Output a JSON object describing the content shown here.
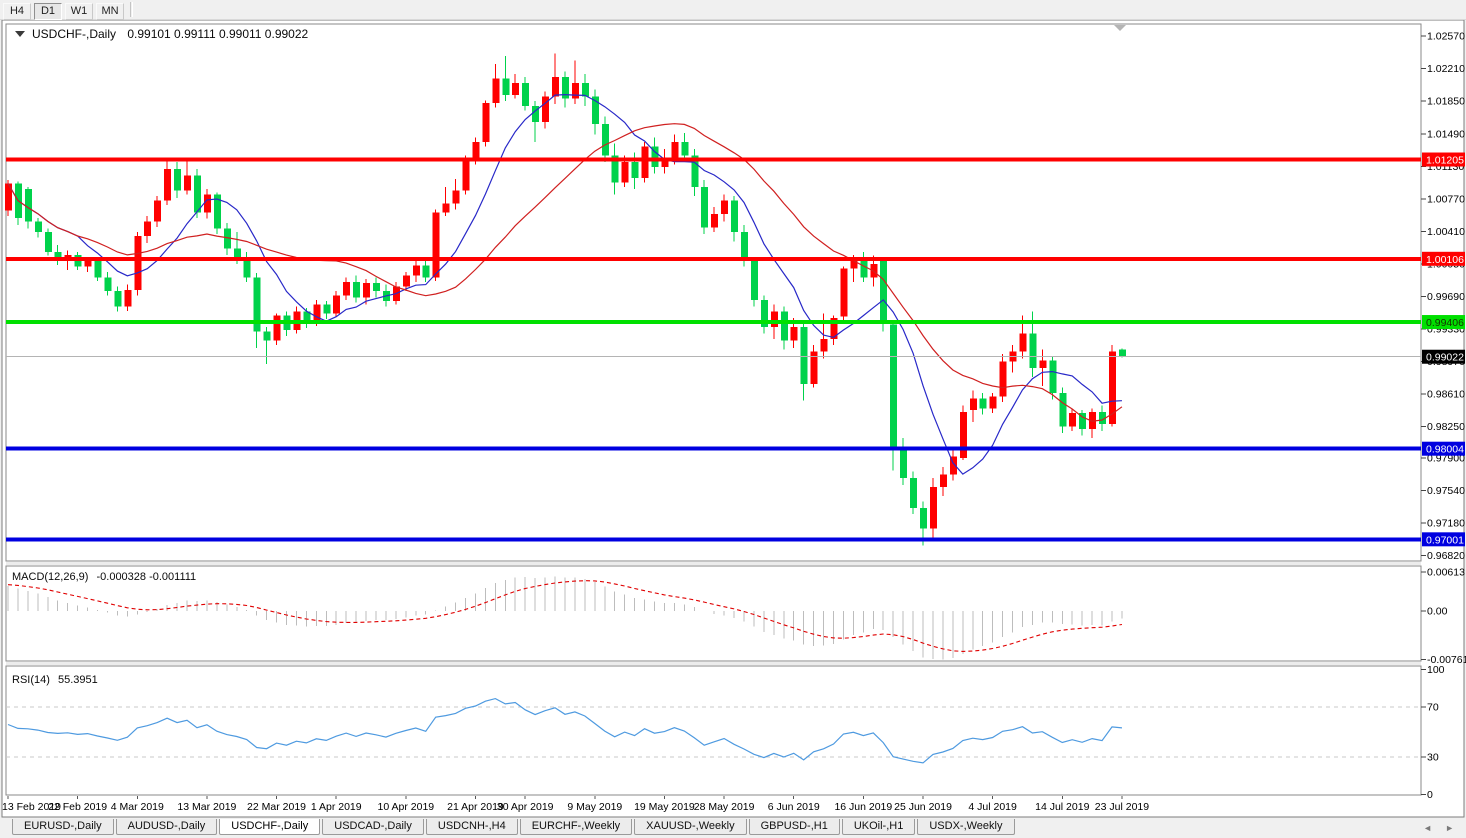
{
  "toolbar": {
    "buttons": [
      {
        "label": "H4",
        "active": false
      },
      {
        "label": "D1",
        "active": true
      },
      {
        "label": "W1",
        "active": false
      },
      {
        "label": "MN",
        "active": false
      }
    ]
  },
  "title": {
    "symbol": "USDCHF-,Daily",
    "ohlc": "0.99101 0.99111 0.99011 0.99022"
  },
  "chart_data": {
    "type": "candlestick",
    "symbol": "USDCHF",
    "timeframe": "Daily",
    "up_color": "#FF0000",
    "down_color": "#00D24B",
    "ylim": [
      0.96761,
      1.02705
    ],
    "candles": [
      [
        1.0064,
        1.0098,
        1.0058,
        1.0094
      ],
      [
        1.0094,
        1.0096,
        1.0048,
        1.0056
      ],
      [
        1.0088,
        1.009,
        1.0044,
        1.0052
      ],
      [
        1.0052,
        1.0056,
        1.0034,
        1.004
      ],
      [
        1.004,
        1.0044,
        1.0014,
        1.0018
      ],
      [
        1.0018,
        1.0026,
        1.0004,
        1.001
      ],
      [
        1.001,
        1.002,
        0.9998,
        1.0015
      ],
      [
        1.0015,
        1.0018,
        0.9998,
        1.0002
      ],
      [
        1.0002,
        1.0012,
        0.9996,
        1.0008
      ],
      [
        1.0008,
        1.001,
        0.9986,
        0.999
      ],
      [
        0.999,
        0.9996,
        0.997,
        0.9975
      ],
      [
        0.9975,
        0.998,
        0.9952,
        0.9958
      ],
      [
        0.9958,
        0.9982,
        0.9953,
        0.9976
      ],
      [
        0.9976,
        1.004,
        0.997,
        1.0036
      ],
      [
        1.0036,
        1.0058,
        1.0028,
        1.0052
      ],
      [
        1.0052,
        1.008,
        1.0046,
        1.0075
      ],
      [
        1.0075,
        1.0121,
        1.007,
        1.011
      ],
      [
        1.011,
        1.0118,
        1.0078,
        1.0086
      ],
      [
        1.0086,
        1.0121,
        1.0082,
        1.0103
      ],
      [
        1.0103,
        1.011,
        1.0056,
        1.0062
      ],
      [
        1.0062,
        1.0088,
        1.0055,
        1.0082
      ],
      [
        1.0082,
        1.0084,
        1.0038,
        1.0044
      ],
      [
        1.0044,
        1.005,
        1.0015,
        1.0022
      ],
      [
        1.0022,
        1.004,
        1.0005,
        1.001
      ],
      [
        1.001,
        1.0018,
        0.9985,
        0.999
      ],
      [
        0.999,
        0.9995,
        0.9912,
        0.993
      ],
      [
        0.993,
        0.9935,
        0.9894,
        0.992
      ],
      [
        0.992,
        0.995,
        0.9915,
        0.9948
      ],
      [
        0.9948,
        0.9952,
        0.9925,
        0.9932
      ],
      [
        0.9932,
        0.9958,
        0.9928,
        0.9952
      ],
      [
        0.9952,
        0.9956,
        0.9934,
        0.994
      ],
      [
        0.994,
        0.9965,
        0.9936,
        0.996
      ],
      [
        0.996,
        0.9964,
        0.9944,
        0.995
      ],
      [
        0.995,
        0.9975,
        0.9946,
        0.997
      ],
      [
        0.997,
        0.999,
        0.9965,
        0.9985
      ],
      [
        0.9985,
        0.9992,
        0.9962,
        0.9968
      ],
      [
        0.9968,
        0.9988,
        0.996,
        0.9984
      ],
      [
        0.9984,
        0.999,
        0.9968,
        0.9975
      ],
      [
        0.9975,
        0.9982,
        0.9958,
        0.9964
      ],
      [
        0.9964,
        0.9985,
        0.996,
        0.998
      ],
      [
        0.998,
        0.9996,
        0.9975,
        0.9992
      ],
      [
        0.9992,
        1.0008,
        0.9985,
        1.0003
      ],
      [
        1.0003,
        1.0008,
        0.9985,
        0.999
      ],
      [
        0.999,
        1.0065,
        0.9986,
        1.0062
      ],
      [
        1.0062,
        1.009,
        1.0058,
        1.0072
      ],
      [
        1.0072,
        1.0099,
        1.0065,
        1.0086
      ],
      [
        1.0086,
        1.0125,
        1.0082,
        1.0122
      ],
      [
        1.0122,
        1.0145,
        1.0115,
        1.014
      ],
      [
        1.014,
        1.0186,
        1.0135,
        1.0183
      ],
      [
        1.0183,
        1.0226,
        1.0178,
        1.021
      ],
      [
        1.021,
        1.0235,
        1.0185,
        1.0192
      ],
      [
        1.0192,
        1.0215,
        1.0188,
        1.0205
      ],
      [
        1.0205,
        1.0212,
        1.0175,
        1.018
      ],
      [
        1.018,
        1.0185,
        1.014,
        1.0162
      ],
      [
        1.0162,
        1.0196,
        1.0155,
        1.019
      ],
      [
        1.019,
        1.0238,
        1.0182,
        1.0212
      ],
      [
        1.0212,
        1.0218,
        1.0178,
        1.0188
      ],
      [
        1.0188,
        1.023,
        1.0182,
        1.0205
      ],
      [
        1.0205,
        1.0215,
        1.018,
        1.019
      ],
      [
        1.019,
        1.0198,
        1.0148,
        1.016
      ],
      [
        1.016,
        1.0168,
        1.0118,
        1.0125
      ],
      [
        1.0125,
        1.0138,
        1.0082,
        1.0095
      ],
      [
        1.0095,
        1.0125,
        1.009,
        1.0118
      ],
      [
        1.0118,
        1.0128,
        1.0088,
        1.01
      ],
      [
        1.01,
        1.014,
        1.0095,
        1.0135
      ],
      [
        1.0135,
        1.0145,
        1.0105,
        1.0112
      ],
      [
        1.0112,
        1.0132,
        1.0105,
        1.012
      ],
      [
        1.012,
        1.0148,
        1.0115,
        1.014
      ],
      [
        1.014,
        1.015,
        1.0118,
        1.0125
      ],
      [
        1.0125,
        1.0132,
        1.008,
        1.009
      ],
      [
        1.009,
        1.0098,
        1.0038,
        1.0045
      ],
      [
        1.0045,
        1.0068,
        1.004,
        1.006
      ],
      [
        1.006,
        1.0082,
        1.0052,
        1.0075
      ],
      [
        1.0075,
        1.008,
        1.003,
        1.004
      ],
      [
        1.004,
        1.0048,
        1.0002,
        1.0008
      ],
      [
        1.0008,
        1.0012,
        0.9958,
        0.9965
      ],
      [
        0.9965,
        0.997,
        0.9928,
        0.9935
      ],
      [
        0.9935,
        0.996,
        0.9922,
        0.9952
      ],
      [
        0.9952,
        0.9958,
        0.991,
        0.992
      ],
      [
        0.992,
        0.9945,
        0.9912,
        0.9935
      ],
      [
        0.9935,
        0.994,
        0.9854,
        0.9872
      ],
      [
        0.9872,
        0.9915,
        0.9868,
        0.9908
      ],
      [
        0.9908,
        0.995,
        0.99,
        0.9922
      ],
      [
        0.9922,
        0.9948,
        0.9915,
        0.9945
      ],
      [
        0.9947,
        1.0002,
        0.994,
        1.0
      ],
      [
        1.0,
        1.0015,
        0.9985,
        1.001
      ],
      [
        1.001,
        1.0018,
        0.9985,
        0.999
      ],
      [
        0.999,
        1.0014,
        0.998,
        1.0005
      ],
      [
        1.0009,
        1.0012,
        0.993,
        0.9941
      ],
      [
        0.9938,
        0.9941,
        0.9776,
        0.98
      ],
      [
        0.9803,
        0.9812,
        0.976,
        0.9768
      ],
      [
        0.9768,
        0.9775,
        0.9728,
        0.9735
      ],
      [
        0.9735,
        0.9742,
        0.9693,
        0.9712
      ],
      [
        0.9712,
        0.9768,
        0.97,
        0.9758
      ],
      [
        0.9758,
        0.978,
        0.9748,
        0.9772
      ],
      [
        0.9772,
        0.98,
        0.9765,
        0.9792
      ],
      [
        0.979,
        0.9848,
        0.9788,
        0.9841
      ],
      [
        0.9843,
        0.9865,
        0.983,
        0.9856
      ],
      [
        0.9856,
        0.9862,
        0.9838,
        0.9845
      ],
      [
        0.9845,
        0.9862,
        0.984,
        0.9858
      ],
      [
        0.9858,
        0.9905,
        0.9852,
        0.9897
      ],
      [
        0.9897,
        0.9915,
        0.9885,
        0.9908
      ],
      [
        0.9908,
        0.9948,
        0.99,
        0.9928
      ],
      [
        0.9928,
        0.9952,
        0.988,
        0.989
      ],
      [
        0.989,
        0.991,
        0.987,
        0.9898
      ],
      [
        0.9898,
        0.9902,
        0.9855,
        0.9862
      ],
      [
        0.9862,
        0.9868,
        0.9818,
        0.9825
      ],
      [
        0.9825,
        0.9845,
        0.982,
        0.984
      ],
      [
        0.984,
        0.9843,
        0.9815,
        0.9822
      ],
      [
        0.9822,
        0.9845,
        0.9812,
        0.9841
      ],
      [
        0.9841,
        0.9848,
        0.982,
        0.9828
      ],
      [
        0.9828,
        0.9915,
        0.9825,
        0.9908
      ],
      [
        0.99101,
        0.99111,
        0.99011,
        0.99022
      ]
    ],
    "date_labels": [
      [
        0,
        "13 Feb 2019"
      ],
      [
        7,
        "22 Feb 2019"
      ],
      [
        13,
        "4 Mar 2019"
      ],
      [
        20,
        "13 Mar 2019"
      ],
      [
        27,
        "22 Mar 2019"
      ],
      [
        33,
        "1 Apr 2019"
      ],
      [
        40,
        "10 Apr 2019"
      ],
      [
        47,
        "21 Apr 2019"
      ],
      [
        52,
        "30 Apr 2019"
      ],
      [
        59,
        "9 May 2019"
      ],
      [
        66,
        "19 May 2019"
      ],
      [
        72,
        "28 May 2019"
      ],
      [
        79,
        "6 Jun 2019"
      ],
      [
        86,
        "16 Jun 2019"
      ],
      [
        92,
        "25 Jun 2019"
      ],
      [
        99,
        "4 Jul 2019"
      ],
      [
        106,
        "14 Jul 2019"
      ],
      [
        112,
        "23 Jul 2019"
      ]
    ],
    "price_axis": [
      {
        "label": "1.02570",
        "value": 1.0257
      },
      {
        "label": "1.02210",
        "value": 1.0221
      },
      {
        "label": "1.01850",
        "value": 1.0185
      },
      {
        "label": "1.01490",
        "value": 1.0149
      },
      {
        "label": "1.01130",
        "value": 1.0113
      },
      {
        "label": "1.00770",
        "value": 1.0077
      },
      {
        "label": "1.00410",
        "value": 1.0041
      },
      {
        "label": "1.00050",
        "value": 1.0005
      },
      {
        "label": "0.99690",
        "value": 0.9969
      },
      {
        "label": "0.99330",
        "value": 0.9933
      },
      {
        "label": "0.98970",
        "value": 0.9897
      },
      {
        "label": "0.98610",
        "value": 0.9861
      },
      {
        "label": "0.98250",
        "value": 0.9825
      },
      {
        "label": "0.97900",
        "value": 0.979
      },
      {
        "label": "0.97540",
        "value": 0.9754
      },
      {
        "label": "0.97180",
        "value": 0.9718
      },
      {
        "label": "0.96820",
        "value": 0.9682
      }
    ],
    "hlines": [
      {
        "value": 1.01205,
        "label": "1.01205",
        "color": "#FF0000",
        "text": "#FFFFFF",
        "name": "resistance-line-1"
      },
      {
        "value": 1.00106,
        "label": "1.00106",
        "color": "#FF0000",
        "text": "#FFFFFF",
        "name": "resistance-line-2"
      },
      {
        "value": 0.99406,
        "label": "0.99406",
        "color": "#00E000",
        "text": "#143300",
        "name": "pivot-line"
      },
      {
        "value": 0.98004,
        "label": "0.98004",
        "color": "#0000E0",
        "text": "#FFFFFF",
        "name": "support-line-1"
      },
      {
        "value": 0.97001,
        "label": "0.97001",
        "color": "#0000E0",
        "text": "#FFFFFF",
        "name": "support-line-2"
      }
    ],
    "bid": {
      "value": 0.99022,
      "label": "0.99022",
      "line_color": "#B4B4B4",
      "tag_bg": "#000000"
    },
    "moving_averages": [
      {
        "type": "SMA",
        "period": 8,
        "color": "#2828C8"
      },
      {
        "type": "SMA",
        "period": 21,
        "color": "#D02020"
      }
    ]
  },
  "macd": {
    "title": "MACD(12,26,9)",
    "values": "-0.000328 -0.001111",
    "params": [
      12,
      26,
      9
    ],
    "axis": [
      {
        "label": "0.00613",
        "value": 0.00613
      },
      {
        "label": "0.00",
        "value": 0
      },
      {
        "label": "-0.00761",
        "value": -0.00761
      }
    ],
    "histogram_color": "#BDBDBD",
    "signal_color": "#E00000"
  },
  "rsi": {
    "title": "RSI(14)",
    "value": "55.3951",
    "period": 14,
    "axis": [
      {
        "label": "100",
        "value": 100
      },
      {
        "label": "70",
        "value": 70
      },
      {
        "label": "30",
        "value": 30
      },
      {
        "label": "0",
        "value": 0
      }
    ],
    "levels": [
      70,
      30
    ],
    "line_color": "#4E9AE0",
    "level_color": "#C8C8C8"
  },
  "tabs": {
    "items": [
      {
        "label": "EURUSD-,Daily",
        "active": false
      },
      {
        "label": "AUDUSD-,Daily",
        "active": false
      },
      {
        "label": "USDCHF-,Daily",
        "active": true
      },
      {
        "label": "USDCAD-,Daily",
        "active": false
      },
      {
        "label": "USDCNH-,H4",
        "active": false
      },
      {
        "label": "EURCHF-,Weekly",
        "active": false
      },
      {
        "label": "XAUUSD-,Weekly",
        "active": false
      },
      {
        "label": "GBPUSD-,H1",
        "active": false
      },
      {
        "label": "UKOil-,H1",
        "active": false
      },
      {
        "label": "USDX-,Weekly",
        "active": false
      }
    ],
    "scroll_left": "◄",
    "scroll_right": "►"
  }
}
